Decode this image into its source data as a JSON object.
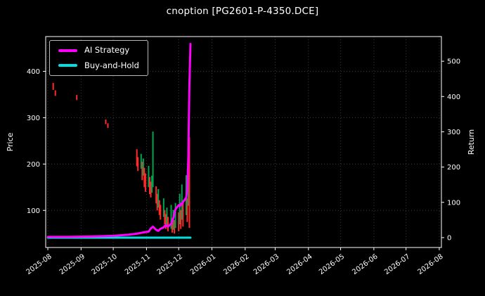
{
  "title": "cnoption [PG2601-P-4350.DCE]",
  "colors": {
    "background": "#000000",
    "text": "#ffffff",
    "grid": "#3a3a3a",
    "spine": "#ffffff",
    "candle_up": "#00a550",
    "candle_down": "#ff2b2b",
    "ai_strategy": "#ff00ff",
    "buy_and_hold": "#00e0e0"
  },
  "chart_data": {
    "type": "mixed",
    "subtype": "candlestick price series + cumulative return lines",
    "title": "cnoption [PG2601-P-4350.DCE]",
    "grid": true,
    "legend_position": "upper-left",
    "x_domain": [
      "2025-07-30",
      "2026-08-03"
    ],
    "x_ticks": [
      "2025-08",
      "2025-09",
      "2025-10",
      "2025-11",
      "2025-12",
      "2026-01",
      "2026-02",
      "2026-03",
      "2026-04",
      "2026-05",
      "2026-06",
      "2026-07",
      "2026-08"
    ],
    "left_axis": {
      "label": "Price",
      "ticks": [
        100,
        200,
        300,
        400
      ],
      "lim": [
        20,
        475
      ]
    },
    "right_axis": {
      "label": "Return",
      "ticks": [
        0,
        100,
        200,
        300,
        400,
        500
      ],
      "lim": [
        -28,
        570
      ]
    },
    "candles": [
      [
        "2025-08-06",
        360,
        375,
        "r"
      ],
      [
        "2025-08-08",
        347,
        359,
        "r"
      ],
      [
        "2025-08-28",
        338,
        349,
        "r"
      ],
      [
        "2025-09-24",
        286,
        296,
        "r"
      ],
      [
        "2025-09-26",
        278,
        288,
        "r"
      ],
      [
        "2025-10-23",
        195,
        232,
        "r"
      ],
      [
        "2025-10-24",
        185,
        215,
        "r"
      ],
      [
        "2025-10-27",
        190,
        222,
        "g"
      ],
      [
        "2025-10-28",
        165,
        205,
        "r"
      ],
      [
        "2025-10-29",
        175,
        212,
        "g"
      ],
      [
        "2025-10-30",
        150,
        192,
        "r"
      ],
      [
        "2025-10-31",
        140,
        180,
        "r"
      ],
      [
        "2025-11-03",
        150,
        196,
        "g"
      ],
      [
        "2025-11-04",
        135,
        172,
        "r"
      ],
      [
        "2025-11-05",
        128,
        162,
        "r"
      ],
      [
        "2025-11-06",
        138,
        175,
        "g"
      ],
      [
        "2025-11-07",
        150,
        270,
        "g"
      ],
      [
        "2025-11-10",
        115,
        152,
        "r"
      ],
      [
        "2025-11-11",
        100,
        136,
        "r"
      ],
      [
        "2025-11-12",
        106,
        146,
        "g"
      ],
      [
        "2025-11-13",
        90,
        122,
        "r"
      ],
      [
        "2025-11-14",
        80,
        112,
        "r"
      ],
      [
        "2025-11-17",
        86,
        126,
        "g"
      ],
      [
        "2025-11-18",
        70,
        101,
        "r"
      ],
      [
        "2025-11-19",
        60,
        92,
        "r"
      ],
      [
        "2025-11-20",
        68,
        106,
        "g"
      ],
      [
        "2025-11-21",
        55,
        86,
        "r"
      ],
      [
        "2025-11-24",
        60,
        112,
        "g"
      ],
      [
        "2025-11-25",
        52,
        83,
        "r"
      ],
      [
        "2025-11-26",
        58,
        101,
        "g"
      ],
      [
        "2025-11-27",
        50,
        79,
        "r"
      ],
      [
        "2025-11-28",
        62,
        116,
        "g"
      ],
      [
        "2025-12-01",
        55,
        96,
        "r"
      ],
      [
        "2025-12-02",
        70,
        136,
        "g"
      ],
      [
        "2025-12-03",
        60,
        101,
        "r"
      ],
      [
        "2025-12-04",
        80,
        156,
        "g"
      ],
      [
        "2025-12-05",
        65,
        116,
        "r"
      ],
      [
        "2025-12-08",
        90,
        176,
        "g"
      ],
      [
        "2025-12-09",
        75,
        126,
        "r"
      ],
      [
        "2025-12-10",
        110,
        206,
        "g"
      ],
      [
        "2025-12-11",
        62,
        258,
        "r"
      ]
    ],
    "series": [
      {
        "name": "AI Strategy",
        "axis": "right",
        "color": "#ff00ff",
        "points": [
          [
            "2025-08-01",
            2
          ],
          [
            "2025-08-20",
            2
          ],
          [
            "2025-09-10",
            3
          ],
          [
            "2025-10-01",
            5
          ],
          [
            "2025-10-15",
            8
          ],
          [
            "2025-10-23",
            11
          ],
          [
            "2025-10-28",
            14
          ],
          [
            "2025-11-03",
            17
          ],
          [
            "2025-11-05",
            26
          ],
          [
            "2025-11-07",
            31
          ],
          [
            "2025-11-10",
            22
          ],
          [
            "2025-11-12",
            19
          ],
          [
            "2025-11-14",
            25
          ],
          [
            "2025-11-17",
            29
          ],
          [
            "2025-11-19",
            36
          ],
          [
            "2025-11-21",
            31
          ],
          [
            "2025-11-24",
            39
          ],
          [
            "2025-11-26",
            56
          ],
          [
            "2025-11-28",
            80
          ],
          [
            "2025-12-01",
            92
          ],
          [
            "2025-12-02",
            89
          ],
          [
            "2025-12-03",
            96
          ],
          [
            "2025-12-04",
            94
          ],
          [
            "2025-12-05",
            101
          ],
          [
            "2025-12-08",
            113
          ],
          [
            "2025-12-09",
            136
          ],
          [
            "2025-12-10",
            225
          ],
          [
            "2025-12-11",
            430
          ],
          [
            "2025-12-12",
            549
          ]
        ]
      },
      {
        "name": "Buy-and-Hold",
        "axis": "right",
        "color": "#00e0e0",
        "points": [
          [
            "2025-08-01",
            0
          ],
          [
            "2025-12-12",
            0
          ]
        ]
      }
    ]
  }
}
